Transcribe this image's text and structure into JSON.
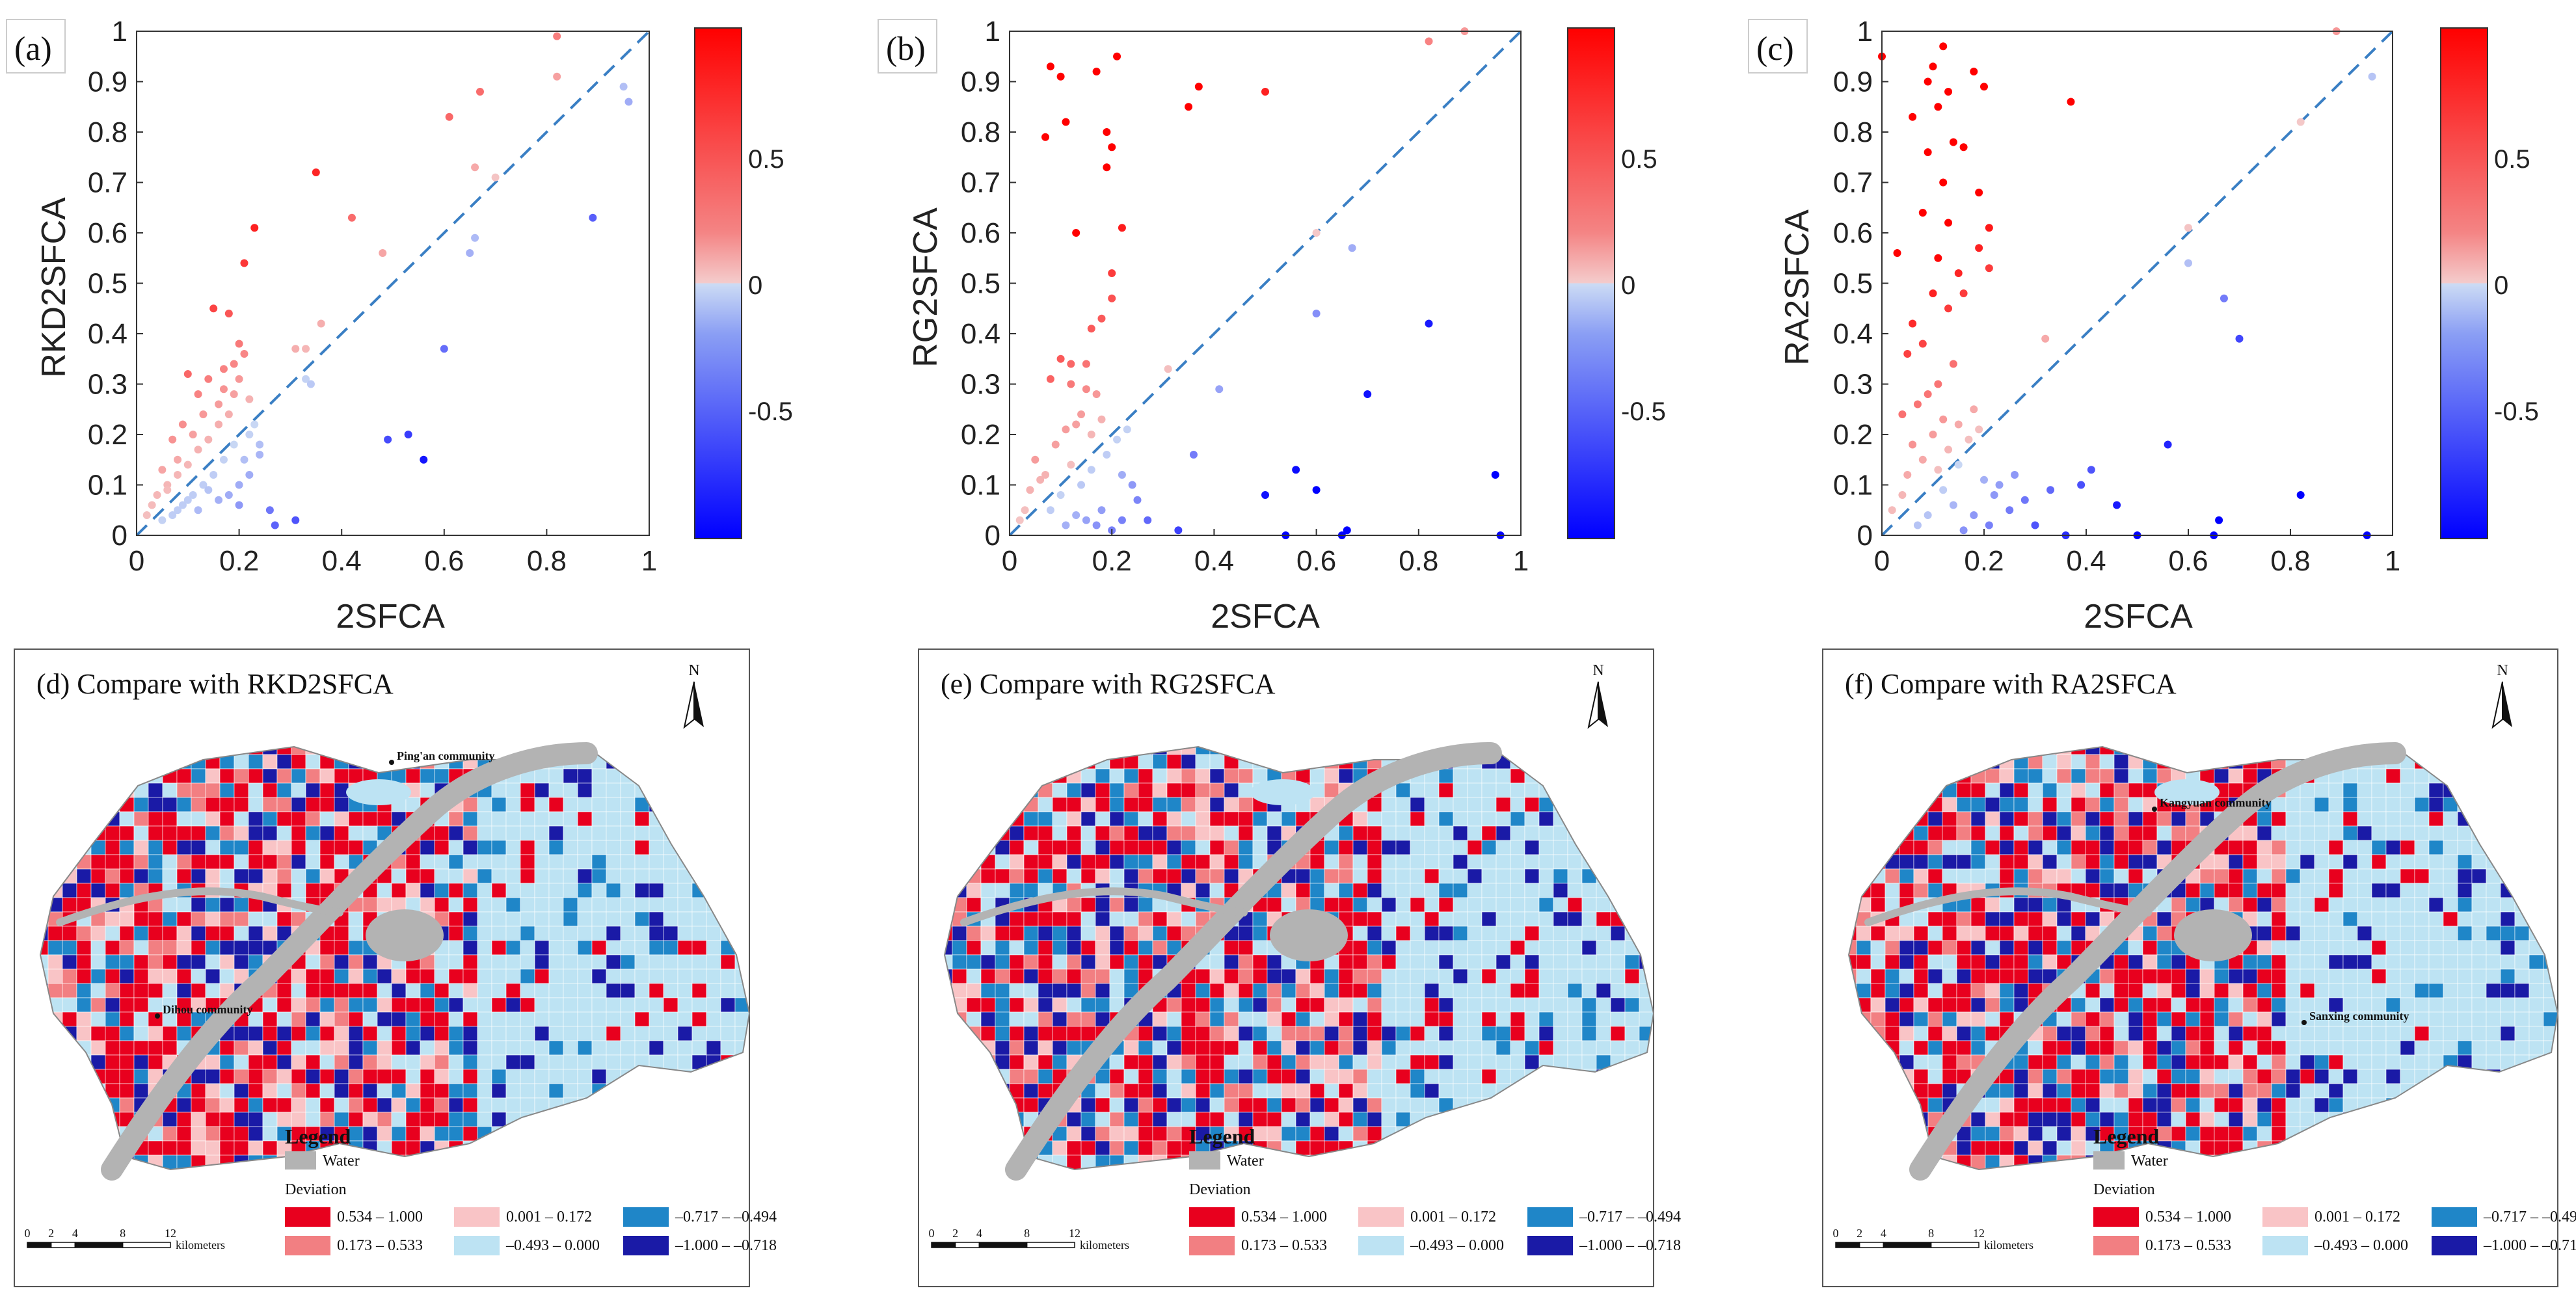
{
  "chart_data": [
    {
      "type": "scatter",
      "label": "(a)",
      "xlabel": "2SFCA",
      "ylabel": "RKD2SFCA",
      "xlim": [
        0,
        1
      ],
      "ylim": [
        0,
        1
      ],
      "xticks": [
        "0",
        "0.2",
        "0.4",
        "0.6",
        "0.8",
        "1"
      ],
      "yticks": [
        "0",
        "0.1",
        "0.2",
        "0.3",
        "0.4",
        "0.5",
        "0.6",
        "0.7",
        "0.8",
        "0.9",
        "1"
      ],
      "reference_line": "y = x (dashed)",
      "colorbar": {
        "ticks": [
          "0.5",
          "0",
          "-0.5"
        ],
        "min": -1,
        "max": 1
      },
      "points": [
        [
          0.82,
          0.99
        ],
        [
          0.82,
          0.91
        ],
        [
          0.95,
          0.89
        ],
        [
          0.96,
          0.86
        ],
        [
          0.61,
          0.83
        ],
        [
          0.67,
          0.88
        ],
        [
          0.66,
          0.73
        ],
        [
          0.7,
          0.71
        ],
        [
          0.35,
          0.72
        ],
        [
          0.42,
          0.63
        ],
        [
          0.48,
          0.56
        ],
        [
          0.23,
          0.61
        ],
        [
          0.21,
          0.54
        ],
        [
          0.66,
          0.59
        ],
        [
          0.65,
          0.56
        ],
        [
          0.89,
          0.63
        ],
        [
          0.15,
          0.45
        ],
        [
          0.18,
          0.44
        ],
        [
          0.36,
          0.42
        ],
        [
          0.33,
          0.37
        ],
        [
          0.31,
          0.37
        ],
        [
          0.2,
          0.38
        ],
        [
          0.21,
          0.36
        ],
        [
          0.19,
          0.34
        ],
        [
          0.2,
          0.31
        ],
        [
          0.17,
          0.33
        ],
        [
          0.14,
          0.31
        ],
        [
          0.1,
          0.32
        ],
        [
          0.12,
          0.28
        ],
        [
          0.16,
          0.26
        ],
        [
          0.13,
          0.24
        ],
        [
          0.09,
          0.22
        ],
        [
          0.11,
          0.2
        ],
        [
          0.07,
          0.19
        ],
        [
          0.08,
          0.15
        ],
        [
          0.05,
          0.13
        ],
        [
          0.06,
          0.1
        ],
        [
          0.04,
          0.08
        ],
        [
          0.03,
          0.06
        ],
        [
          0.02,
          0.04
        ],
        [
          0.06,
          0.09
        ],
        [
          0.08,
          0.12
        ],
        [
          0.1,
          0.14
        ],
        [
          0.12,
          0.17
        ],
        [
          0.14,
          0.19
        ],
        [
          0.16,
          0.22
        ],
        [
          0.18,
          0.24
        ],
        [
          0.19,
          0.28
        ],
        [
          0.22,
          0.27
        ],
        [
          0.17,
          0.29
        ],
        [
          0.33,
          0.31
        ],
        [
          0.34,
          0.3
        ],
        [
          0.6,
          0.37
        ],
        [
          0.49,
          0.19
        ],
        [
          0.53,
          0.2
        ],
        [
          0.56,
          0.15
        ],
        [
          0.27,
          0.02
        ],
        [
          0.31,
          0.03
        ],
        [
          0.26,
          0.05
        ],
        [
          0.2,
          0.1
        ],
        [
          0.22,
          0.12
        ],
        [
          0.18,
          0.08
        ],
        [
          0.24,
          0.16
        ],
        [
          0.2,
          0.06
        ],
        [
          0.22,
          0.2
        ],
        [
          0.19,
          0.18
        ],
        [
          0.17,
          0.15
        ],
        [
          0.15,
          0.12
        ],
        [
          0.13,
          0.1
        ],
        [
          0.11,
          0.08
        ],
        [
          0.09,
          0.06
        ],
        [
          0.07,
          0.04
        ],
        [
          0.05,
          0.03
        ],
        [
          0.14,
          0.09
        ],
        [
          0.16,
          0.07
        ],
        [
          0.12,
          0.05
        ],
        [
          0.24,
          0.18
        ],
        [
          0.21,
          0.15
        ],
        [
          0.23,
          0.22
        ],
        [
          0.1,
          0.07
        ],
        [
          0.08,
          0.05
        ]
      ]
    },
    {
      "type": "scatter",
      "label": "(b)",
      "xlabel": "2SFCA",
      "ylabel": "RG2SFCA",
      "xlim": [
        0,
        1
      ],
      "ylim": [
        0,
        1
      ],
      "xticks": [
        "0",
        "0.2",
        "0.4",
        "0.6",
        "0.8",
        "1"
      ],
      "yticks": [
        "0",
        "0.1",
        "0.2",
        "0.3",
        "0.4",
        "0.5",
        "0.6",
        "0.7",
        "0.8",
        "0.9",
        "1"
      ],
      "reference_line": "y = x (dashed)",
      "colorbar": {
        "ticks": [
          "0.5",
          "0",
          "-0.5"
        ],
        "min": -1,
        "max": 1
      },
      "points": [
        [
          0.89,
          1.0
        ],
        [
          0.82,
          0.98
        ],
        [
          0.08,
          0.93
        ],
        [
          0.1,
          0.91
        ],
        [
          0.17,
          0.92
        ],
        [
          0.21,
          0.95
        ],
        [
          0.35,
          0.85
        ],
        [
          0.37,
          0.89
        ],
        [
          0.5,
          0.88
        ],
        [
          0.11,
          0.82
        ],
        [
          0.07,
          0.79
        ],
        [
          0.19,
          0.8
        ],
        [
          0.2,
          0.77
        ],
        [
          0.19,
          0.73
        ],
        [
          0.22,
          0.61
        ],
        [
          0.13,
          0.6
        ],
        [
          0.2,
          0.52
        ],
        [
          0.2,
          0.47
        ],
        [
          0.18,
          0.43
        ],
        [
          0.16,
          0.41
        ],
        [
          0.1,
          0.35
        ],
        [
          0.12,
          0.34
        ],
        [
          0.15,
          0.34
        ],
        [
          0.08,
          0.31
        ],
        [
          0.12,
          0.3
        ],
        [
          0.15,
          0.29
        ],
        [
          0.17,
          0.28
        ],
        [
          0.31,
          0.33
        ],
        [
          0.6,
          0.6
        ],
        [
          0.67,
          0.57
        ],
        [
          0.6,
          0.44
        ],
        [
          0.82,
          0.42
        ],
        [
          0.7,
          0.28
        ],
        [
          0.41,
          0.29
        ],
        [
          0.36,
          0.16
        ],
        [
          0.5,
          0.08
        ],
        [
          0.56,
          0.13
        ],
        [
          0.6,
          0.09
        ],
        [
          0.66,
          0.01
        ],
        [
          0.65,
          0.0
        ],
        [
          0.95,
          0.12
        ],
        [
          0.96,
          0.0
        ],
        [
          0.54,
          0.0
        ],
        [
          0.33,
          0.01
        ],
        [
          0.25,
          0.07
        ],
        [
          0.22,
          0.12
        ],
        [
          0.18,
          0.05
        ],
        [
          0.2,
          0.01
        ],
        [
          0.15,
          0.03
        ],
        [
          0.27,
          0.03
        ],
        [
          0.05,
          0.15
        ],
        [
          0.07,
          0.12
        ],
        [
          0.04,
          0.09
        ],
        [
          0.03,
          0.05
        ],
        [
          0.02,
          0.03
        ],
        [
          0.06,
          0.11
        ],
        [
          0.09,
          0.18
        ],
        [
          0.11,
          0.21
        ],
        [
          0.13,
          0.22
        ],
        [
          0.14,
          0.24
        ],
        [
          0.16,
          0.2
        ],
        [
          0.18,
          0.23
        ],
        [
          0.12,
          0.14
        ],
        [
          0.1,
          0.08
        ],
        [
          0.08,
          0.05
        ],
        [
          0.14,
          0.1
        ],
        [
          0.16,
          0.13
        ],
        [
          0.19,
          0.16
        ],
        [
          0.21,
          0.19
        ],
        [
          0.23,
          0.21
        ],
        [
          0.24,
          0.1
        ],
        [
          0.22,
          0.03
        ],
        [
          0.17,
          0.02
        ],
        [
          0.13,
          0.04
        ],
        [
          0.11,
          0.02
        ]
      ]
    },
    {
      "type": "scatter",
      "label": "(c)",
      "xlabel": "2SFCA",
      "ylabel": "RA2SFCA",
      "xlim": [
        0,
        1
      ],
      "ylim": [
        0,
        1
      ],
      "xticks": [
        "0",
        "0.2",
        "0.4",
        "0.6",
        "0.8",
        "1"
      ],
      "yticks": [
        "0",
        "0.1",
        "0.2",
        "0.3",
        "0.4",
        "0.5",
        "0.6",
        "0.7",
        "0.8",
        "0.9",
        "1"
      ],
      "reference_line": "y = x (dashed)",
      "colorbar": {
        "ticks": [
          "0.5",
          "0",
          "-0.5"
        ],
        "min": -1,
        "max": 1
      },
      "points": [
        [
          0.89,
          1.0
        ],
        [
          0.96,
          0.91
        ],
        [
          0.82,
          0.82
        ],
        [
          0.0,
          0.95
        ],
        [
          0.12,
          0.97
        ],
        [
          0.1,
          0.93
        ],
        [
          0.09,
          0.9
        ],
        [
          0.13,
          0.88
        ],
        [
          0.18,
          0.92
        ],
        [
          0.2,
          0.89
        ],
        [
          0.06,
          0.83
        ],
        [
          0.11,
          0.85
        ],
        [
          0.14,
          0.78
        ],
        [
          0.16,
          0.77
        ],
        [
          0.09,
          0.76
        ],
        [
          0.12,
          0.7
        ],
        [
          0.19,
          0.68
        ],
        [
          0.08,
          0.64
        ],
        [
          0.13,
          0.62
        ],
        [
          0.21,
          0.61
        ],
        [
          0.19,
          0.57
        ],
        [
          0.03,
          0.56
        ],
        [
          0.11,
          0.55
        ],
        [
          0.21,
          0.53
        ],
        [
          0.15,
          0.52
        ],
        [
          0.1,
          0.48
        ],
        [
          0.16,
          0.48
        ],
        [
          0.13,
          0.45
        ],
        [
          0.06,
          0.42
        ],
        [
          0.08,
          0.38
        ],
        [
          0.05,
          0.36
        ],
        [
          0.37,
          0.86
        ],
        [
          0.32,
          0.39
        ],
        [
          0.14,
          0.34
        ],
        [
          0.11,
          0.3
        ],
        [
          0.09,
          0.28
        ],
        [
          0.07,
          0.26
        ],
        [
          0.04,
          0.24
        ],
        [
          0.12,
          0.23
        ],
        [
          0.1,
          0.2
        ],
        [
          0.06,
          0.18
        ],
        [
          0.15,
          0.22
        ],
        [
          0.18,
          0.25
        ],
        [
          0.6,
          0.61
        ],
        [
          0.7,
          0.39
        ],
        [
          0.67,
          0.47
        ],
        [
          0.6,
          0.54
        ],
        [
          0.56,
          0.18
        ],
        [
          0.41,
          0.13
        ],
        [
          0.39,
          0.1
        ],
        [
          0.46,
          0.06
        ],
        [
          0.5,
          0.0
        ],
        [
          0.66,
          0.03
        ],
        [
          0.65,
          0.0
        ],
        [
          0.95,
          0.0
        ],
        [
          0.82,
          0.08
        ],
        [
          0.36,
          0.0
        ],
        [
          0.3,
          0.02
        ],
        [
          0.25,
          0.05
        ],
        [
          0.22,
          0.08
        ],
        [
          0.2,
          0.11
        ],
        [
          0.18,
          0.04
        ],
        [
          0.16,
          0.01
        ],
        [
          0.14,
          0.06
        ],
        [
          0.12,
          0.09
        ],
        [
          0.09,
          0.04
        ],
        [
          0.07,
          0.02
        ],
        [
          0.04,
          0.08
        ],
        [
          0.02,
          0.05
        ],
        [
          0.05,
          0.12
        ],
        [
          0.08,
          0.15
        ],
        [
          0.11,
          0.13
        ],
        [
          0.13,
          0.17
        ],
        [
          0.15,
          0.14
        ],
        [
          0.17,
          0.19
        ],
        [
          0.19,
          0.21
        ],
        [
          0.23,
          0.1
        ],
        [
          0.26,
          0.12
        ],
        [
          0.28,
          0.07
        ],
        [
          0.33,
          0.09
        ],
        [
          0.21,
          0.02
        ]
      ]
    }
  ],
  "maps": [
    {
      "title": "(d) Compare with RKD2SFCA",
      "annotations": [
        "Ping'an community",
        "Dihou community"
      ]
    },
    {
      "title": "(e) Compare with RG2SFCA",
      "annotations": []
    },
    {
      "title": "(f) Compare with RA2SFCA",
      "annotations": [
        "Kangyuan community",
        "Sanxing community"
      ]
    }
  ],
  "legend": {
    "title": "Legend",
    "water": "Water",
    "deviation": "Deviation",
    "classes": [
      {
        "label": "0.534 – 1.000",
        "color": "#e8001e"
      },
      {
        "label": "0.173 – 0.533",
        "color": "#f27f82"
      },
      {
        "label": "0.001 – 0.172",
        "color": "#f9c4c6"
      },
      {
        "label": "–0.493 – 0.000",
        "color": "#bde3f3"
      },
      {
        "label": "–0.717 – –0.494",
        "color": "#1f86c8"
      },
      {
        "label": "–1.000 – –0.718",
        "color": "#1a1aa6"
      }
    ],
    "water_color": "#b3b3b3",
    "scale_ticks": [
      "0",
      "2",
      "4",
      "8",
      "12"
    ],
    "scale_unit": "kilometers",
    "north": "N"
  }
}
